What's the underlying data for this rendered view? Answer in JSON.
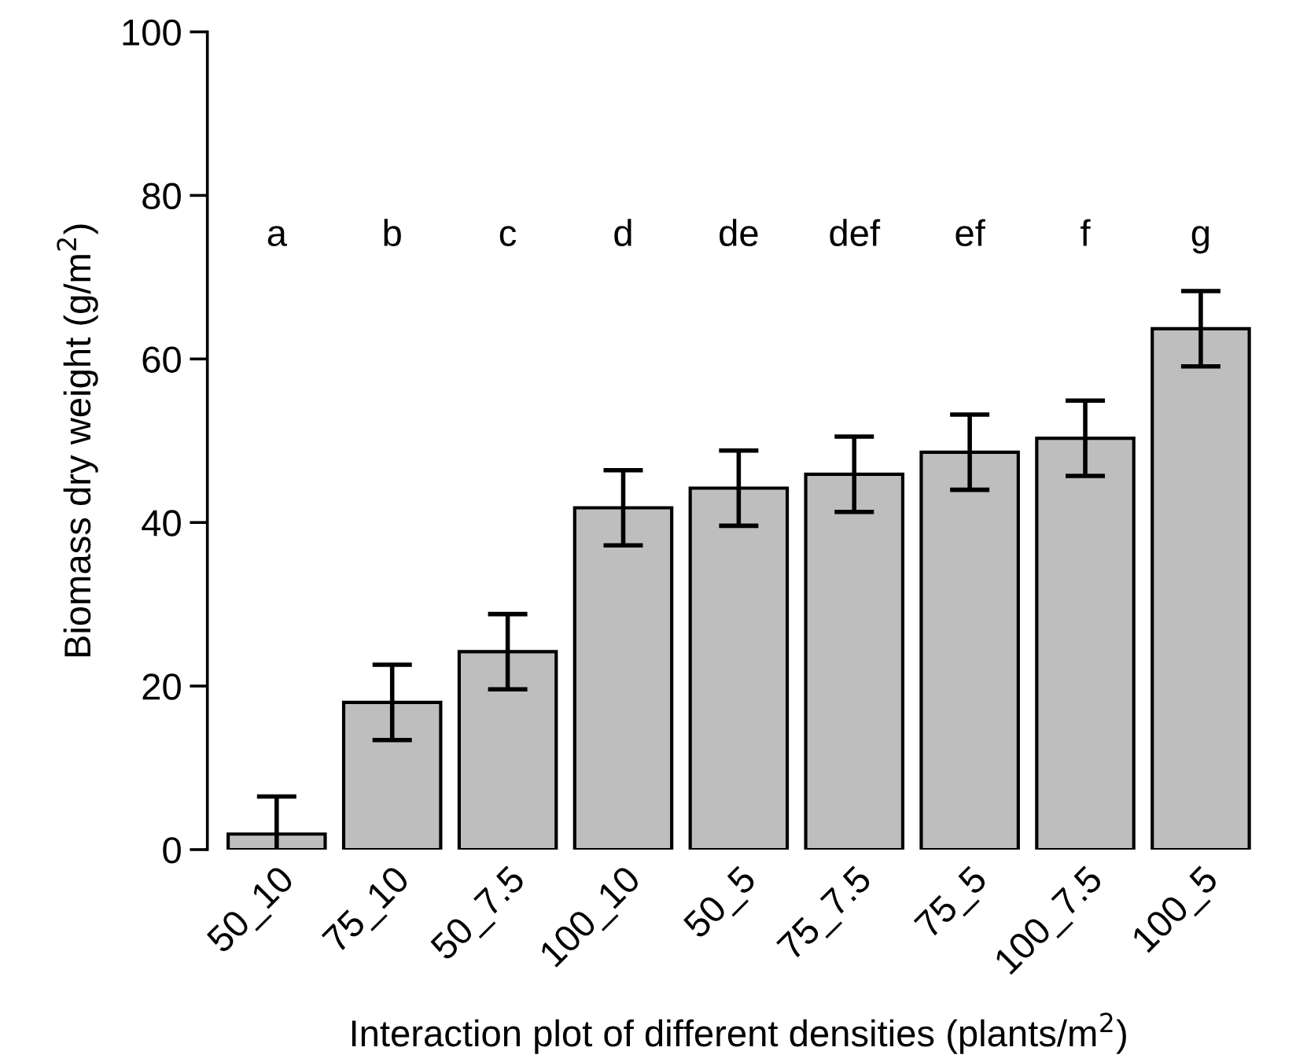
{
  "chart_data": {
    "type": "bar",
    "xlabel": "Interaction plot of different densities (plants/m$^{2}$)",
    "ylabel": "Biomass dry weight (g/m$^{2}$)",
    "categories": [
      "50_10",
      "75_10",
      "50_7.5",
      "100_10",
      "50_5",
      "75_7.5",
      "75_5",
      "100_7.5",
      "100_5"
    ],
    "values": [
      1.9,
      18.0,
      24.2,
      41.8,
      44.2,
      45.9,
      48.6,
      50.3,
      63.7
    ],
    "errors": [
      4.6,
      4.6,
      4.6,
      4.6,
      4.6,
      4.6,
      4.6,
      4.6,
      4.6
    ],
    "color": "#bebebe",
    "ylim": [
      0,
      100
    ],
    "yticks": [
      0,
      20,
      40,
      60,
      80,
      100
    ],
    "grid": false,
    "annotations": [
      "a",
      "b",
      "c",
      "d",
      "de",
      "def",
      "ef",
      "f",
      "g"
    ]
  }
}
